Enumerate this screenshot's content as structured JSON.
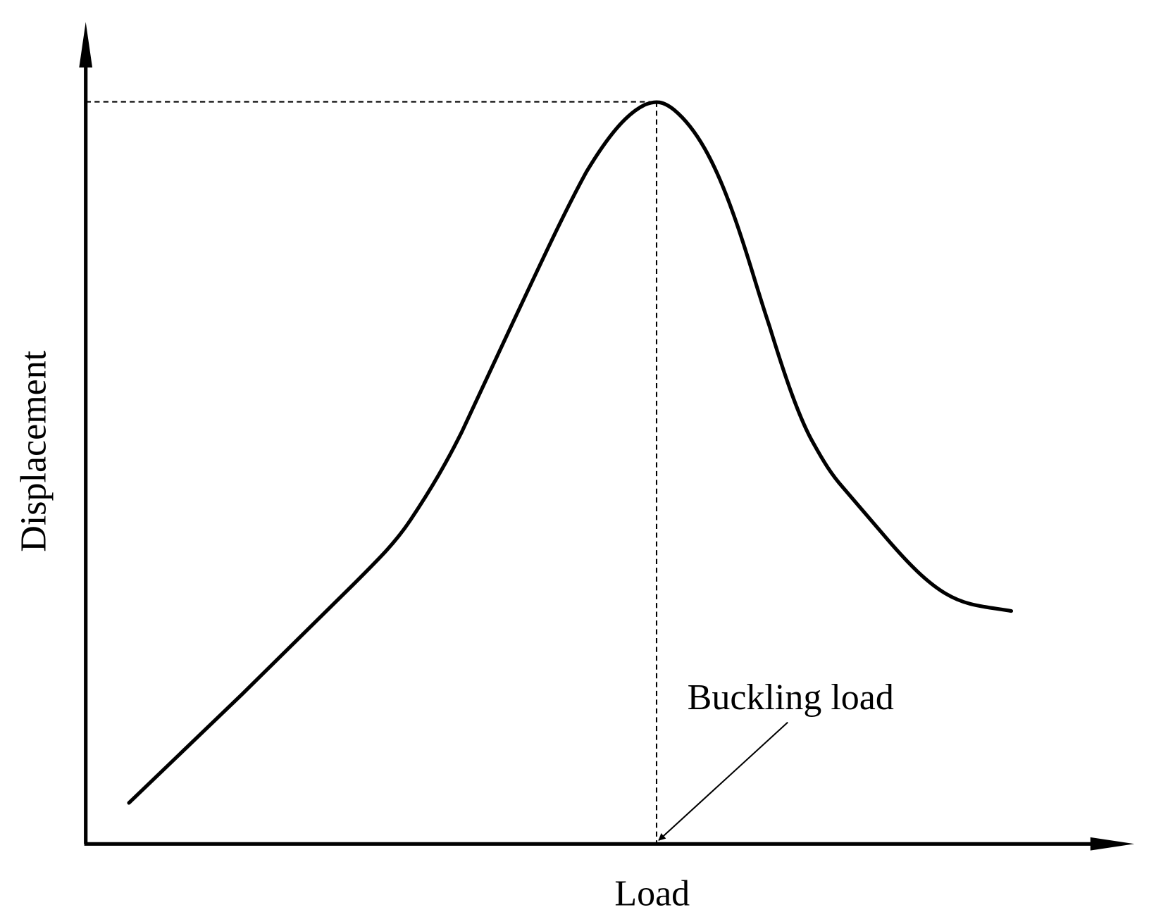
{
  "axes": {
    "y_label": "Displacement",
    "x_label": "Load"
  },
  "annotation": {
    "label": "Buckling load"
  }
}
